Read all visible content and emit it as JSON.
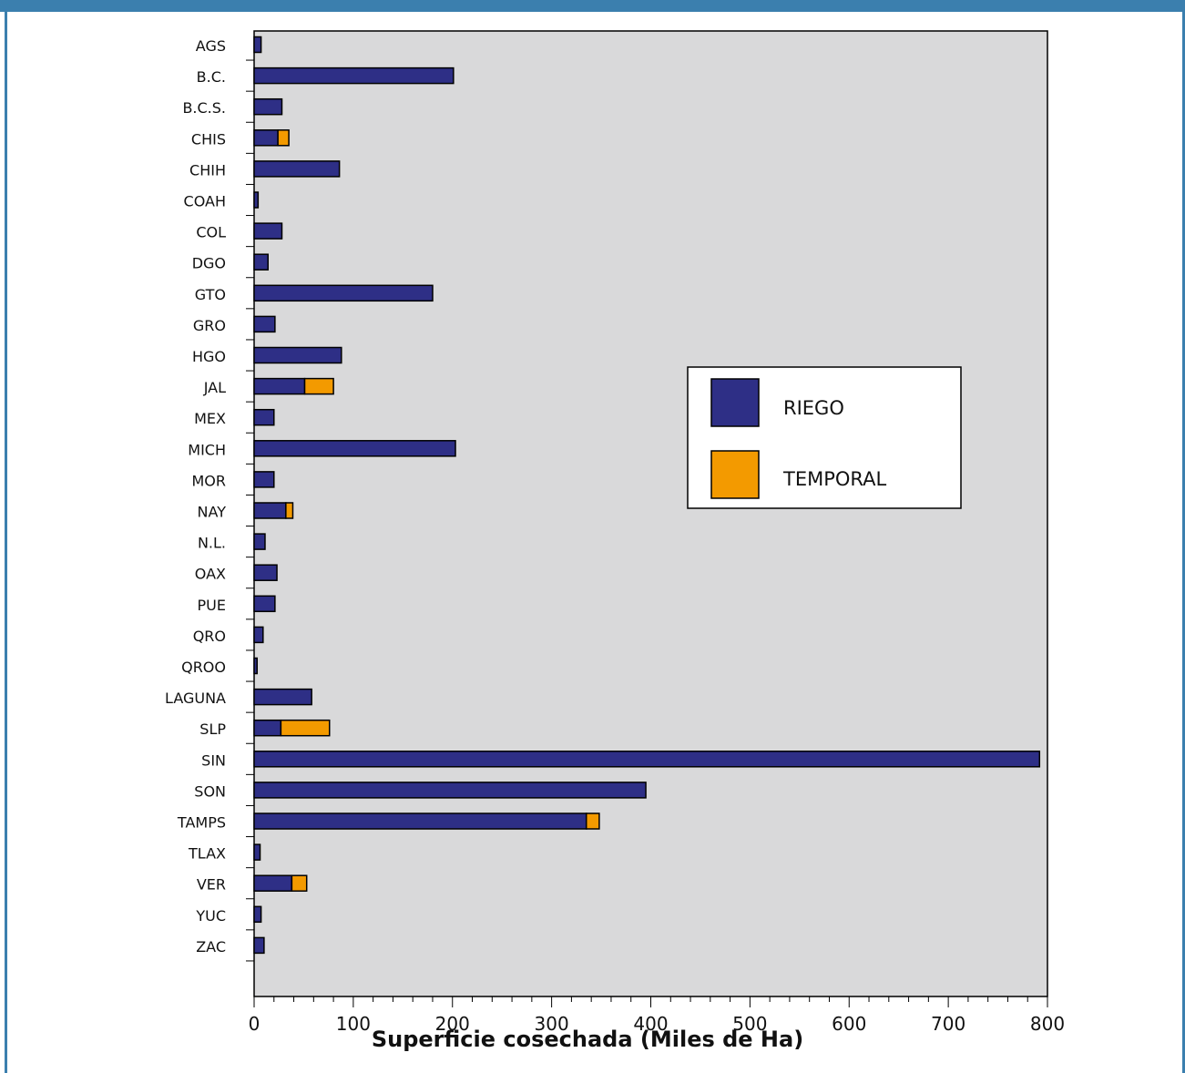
{
  "colors": {
    "frame": "#3b7fae",
    "plot_background": "#d9d9da",
    "riego": "#2e2f86",
    "temporal": "#f39a00"
  },
  "chart_data": {
    "type": "bar",
    "orientation": "horizontal",
    "stacked": true,
    "title": "",
    "xlabel": "Superficie cosechada (Miles de Ha)",
    "ylabel": "",
    "xlim": [
      0,
      800
    ],
    "xticks": [
      0,
      100,
      200,
      300,
      400,
      500,
      600,
      700,
      800
    ],
    "xtick_labels": [
      "0",
      "100",
      "200",
      "300",
      "400",
      "500",
      "600",
      "700",
      "800"
    ],
    "grid": false,
    "legend_position": "right",
    "categories": [
      "AGS",
      "B.C.",
      "B.C.S.",
      "CHIS",
      "CHIH",
      "COAH",
      "COL",
      "DGO",
      "GTO",
      "GRO",
      "HGO",
      "JAL",
      "MEX",
      "MICH",
      "MOR",
      "NAY",
      "N.L.",
      "OAX",
      "PUE",
      "QRO",
      "QROO",
      "LAGUNA",
      "SLP",
      "SIN",
      "SON",
      "TAMPS",
      "TLAX",
      "VER",
      "YUC",
      "ZAC"
    ],
    "series": [
      {
        "name": "RIEGO",
        "color": "#2e2f86",
        "values": [
          7,
          201,
          28,
          24,
          86,
          4,
          28,
          14,
          180,
          21,
          88,
          51,
          20,
          203,
          20,
          32,
          11,
          23,
          21,
          9,
          3,
          58,
          27,
          792,
          395,
          335,
          6,
          38,
          7,
          10
        ]
      },
      {
        "name": "TEMPORAL",
        "color": "#f39a00",
        "values": [
          0,
          0,
          0,
          11,
          0,
          0,
          0,
          0,
          0,
          0,
          0,
          29,
          0,
          0,
          0,
          7,
          0,
          0,
          0,
          0,
          0,
          0,
          49,
          0,
          0,
          13,
          0,
          15,
          0,
          0
        ]
      }
    ]
  }
}
